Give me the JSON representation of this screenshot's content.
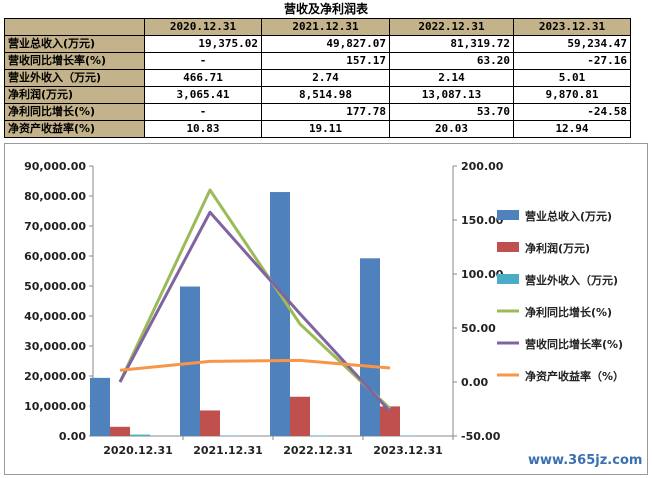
{
  "table": {
    "title": "营收及净利润表",
    "headers": [
      "",
      "2020.12.31",
      "2021.12.31",
      "2022.12.31",
      "2023.12.31"
    ],
    "rows": [
      {
        "label": "营业总收入(万元)",
        "values": [
          "19,375.02",
          "49,827.07",
          "81,319.72",
          "59,234.47"
        ]
      },
      {
        "label": "营收同比增长率(%)",
        "values": [
          "-",
          "157.17",
          "63.20",
          "-27.16"
        ]
      },
      {
        "label": "营业外收入（万元)",
        "values": [
          "466.71",
          "2.74",
          "2.14",
          "5.01"
        ]
      },
      {
        "label": "净利润(万元)",
        "values": [
          "3,065.41",
          "8,514.98",
          "13,087.13",
          "9,870.81"
        ]
      },
      {
        "label": "净利同比增长(%)",
        "values": [
          "-",
          "177.78",
          "53.70",
          "-24.58"
        ]
      },
      {
        "label": "净资产收益率(%)",
        "values": [
          "10.83",
          "19.11",
          "20.03",
          "12.94"
        ]
      }
    ]
  },
  "chart_data": {
    "type": "bar",
    "categories": [
      "2020.12.31",
      "2021.12.31",
      "2022.12.31",
      "2023.12.31"
    ],
    "left_axis": {
      "ylim": [
        0,
        90000
      ],
      "ticks": [
        "0.00",
        "10,000.00",
        "20,000.00",
        "30,000.00",
        "40,000.00",
        "50,000.00",
        "60,000.00",
        "70,000.00",
        "80,000.00",
        "90,000.00"
      ],
      "tick_values": [
        0,
        10000,
        20000,
        30000,
        40000,
        50000,
        60000,
        70000,
        80000,
        90000
      ]
    },
    "right_axis": {
      "ylim": [
        -50,
        200
      ],
      "ticks": [
        "-50.00",
        "0.00",
        "50.00",
        "100.00",
        "150.00",
        "200.00"
      ],
      "tick_values": [
        -50,
        0,
        50,
        100,
        150,
        200
      ]
    },
    "bar_series": [
      {
        "name": "营业总收入(万元)",
        "color": "#4f81bd",
        "values": [
          19375.02,
          49827.07,
          81319.72,
          59234.47
        ]
      },
      {
        "name": "净利润(万元)",
        "color": "#c0504d",
        "values": [
          3065.41,
          8514.98,
          13087.13,
          9870.81
        ]
      },
      {
        "name": "营业外收入（万元)",
        "color": "#4bacc6",
        "values": [
          466.71,
          2.74,
          2.14,
          5.01
        ]
      }
    ],
    "line_series": [
      {
        "name": "净利同比增长(%)",
        "color": "#9bbb59",
        "values": [
          0,
          177.78,
          53.7,
          -24.58
        ]
      },
      {
        "name": "营收同比增长率(%)",
        "color": "#8064a2",
        "values": [
          0,
          157.17,
          63.2,
          -27.16
        ]
      },
      {
        "name": "净资产收益率（%）",
        "color": "#f79646",
        "values": [
          10.83,
          19.11,
          20.03,
          12.94
        ]
      }
    ],
    "legend_position": "right",
    "grid": false
  },
  "watermark": "www.365jz.com"
}
